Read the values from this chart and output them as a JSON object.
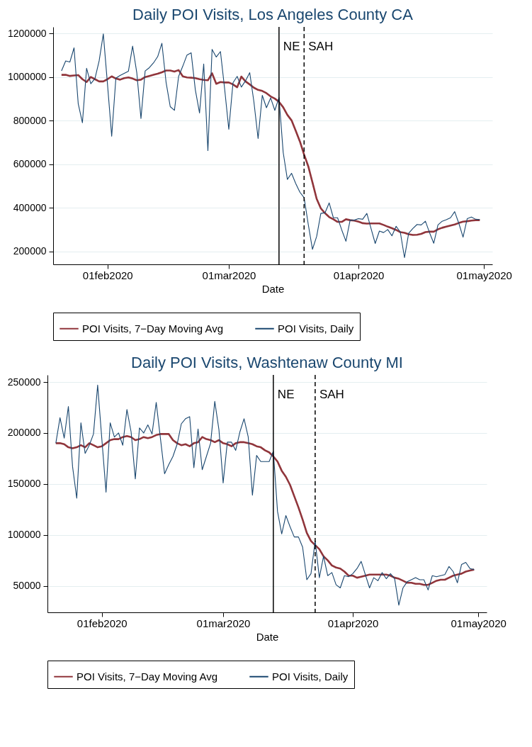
{
  "chart_data": [
    {
      "type": "line",
      "title": "Daily POI Visits, Los Angeles County CA",
      "xlabel": "Date",
      "x": [
        "2020-01-21",
        "2020-01-22",
        "2020-01-23",
        "2020-01-24",
        "2020-01-25",
        "2020-01-26",
        "2020-01-27",
        "2020-01-28",
        "2020-01-29",
        "2020-01-30",
        "2020-01-31",
        "2020-02-01",
        "2020-02-02",
        "2020-02-03",
        "2020-02-04",
        "2020-02-05",
        "2020-02-06",
        "2020-02-07",
        "2020-02-08",
        "2020-02-09",
        "2020-02-10",
        "2020-02-11",
        "2020-02-12",
        "2020-02-13",
        "2020-02-14",
        "2020-02-15",
        "2020-02-16",
        "2020-02-17",
        "2020-02-18",
        "2020-02-19",
        "2020-02-20",
        "2020-02-21",
        "2020-02-22",
        "2020-02-23",
        "2020-02-24",
        "2020-02-25",
        "2020-02-26",
        "2020-02-27",
        "2020-02-28",
        "2020-02-29",
        "2020-03-01",
        "2020-03-02",
        "2020-03-03",
        "2020-03-04",
        "2020-03-05",
        "2020-03-06",
        "2020-03-07",
        "2020-03-08",
        "2020-03-09",
        "2020-03-10",
        "2020-03-11",
        "2020-03-12",
        "2020-03-13",
        "2020-03-14",
        "2020-03-15",
        "2020-03-16",
        "2020-03-17",
        "2020-03-18",
        "2020-03-19",
        "2020-03-20",
        "2020-03-21",
        "2020-03-22",
        "2020-03-23",
        "2020-03-24",
        "2020-03-25",
        "2020-03-26",
        "2020-03-27",
        "2020-03-28",
        "2020-03-29",
        "2020-03-30",
        "2020-03-31",
        "2020-04-01",
        "2020-04-02",
        "2020-04-03",
        "2020-04-04",
        "2020-04-05",
        "2020-04-06",
        "2020-04-07",
        "2020-04-08",
        "2020-04-09",
        "2020-04-10",
        "2020-04-11",
        "2020-04-12",
        "2020-04-13",
        "2020-04-14",
        "2020-04-15",
        "2020-04-16",
        "2020-04-17",
        "2020-04-18",
        "2020-04-19",
        "2020-04-20",
        "2020-04-21",
        "2020-04-22",
        "2020-04-23",
        "2020-04-24",
        "2020-04-25",
        "2020-04-26",
        "2020-04-27",
        "2020-04-28",
        "2020-04-29",
        "2020-04-30"
      ],
      "series": [
        {
          "name": "POI Visits, 7−Day Moving Avg",
          "color": "#90353b",
          "values": [
            1010000,
            1010000,
            1005000,
            1007000,
            1009000,
            990000,
            977000,
            1000000,
            990000,
            980000,
            980000,
            990000,
            1003000,
            993000,
            988000,
            995000,
            998000,
            993000,
            985000,
            988000,
            1000000,
            1005000,
            1010000,
            1015000,
            1022000,
            1030000,
            1030000,
            1025000,
            1032000,
            1003000,
            998000,
            997000,
            995000,
            990000,
            987000,
            985000,
            1017000,
            969000,
            977000,
            975000,
            975000,
            966000,
            953000,
            1002000,
            980000,
            966000,
            951000,
            941000,
            936000,
            926000,
            911000,
            901000,
            886000,
            861000,
            826000,
            801000,
            753000,
            704000,
            644000,
            590000,
            516000,
            441000,
            397000,
            375000,
            357000,
            347000,
            335000,
            335000,
            347000,
            343000,
            341000,
            336000,
            329000,
            327000,
            328000,
            328000,
            328000,
            321000,
            313000,
            306000,
            298000,
            288000,
            285000,
            278000,
            275000,
            276000,
            280000,
            288000,
            290000,
            290000,
            301000,
            308000,
            313000,
            318000,
            323000,
            330000,
            336000,
            338000,
            341000,
            343000,
            343000
          ]
        },
        {
          "name": "POI Visits, Daily",
          "color": "#1a476f",
          "values": [
            1028000,
            1074000,
            1069000,
            1134000,
            877000,
            790000,
            1040000,
            969000,
            993000,
            1074000,
            1198000,
            966000,
            728000,
            995000,
            1007000,
            1017000,
            1027000,
            1142000,
            1020000,
            810000,
            1028000,
            1043000,
            1065000,
            1094000,
            1155000,
            976000,
            864000,
            847000,
            1003000,
            1050000,
            1101000,
            1111000,
            941000,
            835000,
            1060000,
            662000,
            1127000,
            1092000,
            1117000,
            946000,
            760000,
            974000,
            1003000,
            954000,
            983000,
            1020000,
            886000,
            718000,
            916000,
            859000,
            904000,
            847000,
            906000,
            654000,
            530000,
            558000,
            511000,
            471000,
            446000,
            323000,
            209000,
            268000,
            374000,
            377000,
            422000,
            354000,
            354000,
            298000,
            246000,
            343000,
            343000,
            350000,
            347000,
            374000,
            305000,
            236000,
            293000,
            286000,
            300000,
            271000,
            315000,
            288000,
            171000,
            283000,
            305000,
            323000,
            321000,
            338000,
            285000,
            237000,
            321000,
            338000,
            345000,
            354000,
            382000,
            328000,
            265000,
            350000,
            357000,
            347000,
            346000
          ]
        }
      ],
      "xlim": [
        "2020-01-19",
        "2020-05-03"
      ],
      "xticks": [
        {
          "value": "2020-02-01",
          "label": "01feb2020"
        },
        {
          "value": "2020-03-01",
          "label": "01mar2020"
        },
        {
          "value": "2020-04-01",
          "label": "01apr2020"
        },
        {
          "value": "2020-05-01",
          "label": "01may2020"
        }
      ],
      "ylim": [
        140000,
        1230000
      ],
      "yticks": [
        200000,
        400000,
        600000,
        800000,
        1000000,
        1200000
      ],
      "grid": "y",
      "legend": "bottom",
      "ref_lines": [
        {
          "axis": "x",
          "value": "2020-03-13",
          "label": "NE",
          "line_style": "solid"
        },
        {
          "axis": "x",
          "value": "2020-03-19",
          "label": "SAH",
          "line_style": "dashed"
        }
      ]
    },
    {
      "type": "line",
      "title": "Daily POI Visits, Washtenaw County MI",
      "xlabel": "Date",
      "x": [
        "2020-01-21",
        "2020-01-22",
        "2020-01-23",
        "2020-01-24",
        "2020-01-25",
        "2020-01-26",
        "2020-01-27",
        "2020-01-28",
        "2020-01-29",
        "2020-01-30",
        "2020-01-31",
        "2020-02-01",
        "2020-02-02",
        "2020-02-03",
        "2020-02-04",
        "2020-02-05",
        "2020-02-06",
        "2020-02-07",
        "2020-02-08",
        "2020-02-09",
        "2020-02-10",
        "2020-02-11",
        "2020-02-12",
        "2020-02-13",
        "2020-02-14",
        "2020-02-15",
        "2020-02-16",
        "2020-02-17",
        "2020-02-18",
        "2020-02-19",
        "2020-02-20",
        "2020-02-21",
        "2020-02-22",
        "2020-02-23",
        "2020-02-24",
        "2020-02-25",
        "2020-02-26",
        "2020-02-27",
        "2020-02-28",
        "2020-02-29",
        "2020-03-01",
        "2020-03-02",
        "2020-03-03",
        "2020-03-04",
        "2020-03-05",
        "2020-03-06",
        "2020-03-07",
        "2020-03-08",
        "2020-03-09",
        "2020-03-10",
        "2020-03-11",
        "2020-03-12",
        "2020-03-13",
        "2020-03-14",
        "2020-03-15",
        "2020-03-16",
        "2020-03-17",
        "2020-03-18",
        "2020-03-19",
        "2020-03-20",
        "2020-03-21",
        "2020-03-22",
        "2020-03-23",
        "2020-03-24",
        "2020-03-25",
        "2020-03-26",
        "2020-03-27",
        "2020-03-28",
        "2020-03-29",
        "2020-03-30",
        "2020-03-31",
        "2020-04-01",
        "2020-04-02",
        "2020-04-03",
        "2020-04-04",
        "2020-04-05",
        "2020-04-06",
        "2020-04-07",
        "2020-04-08",
        "2020-04-09",
        "2020-04-10",
        "2020-04-11",
        "2020-04-12",
        "2020-04-13",
        "2020-04-14",
        "2020-04-15",
        "2020-04-16",
        "2020-04-17",
        "2020-04-18",
        "2020-04-19",
        "2020-04-20",
        "2020-04-21",
        "2020-04-22",
        "2020-04-23",
        "2020-04-24",
        "2020-04-25",
        "2020-04-26",
        "2020-04-27",
        "2020-04-28",
        "2020-04-29",
        "2020-04-30"
      ],
      "series": [
        {
          "name": "POI Visits, 7−Day Moving Avg",
          "color": "#90353b",
          "values": [
            190000,
            190000,
            189000,
            186000,
            185000,
            186000,
            188000,
            186000,
            190000,
            188000,
            186000,
            187000,
            190000,
            193000,
            194000,
            194000,
            196000,
            197000,
            196000,
            193000,
            194000,
            196000,
            195000,
            196000,
            198000,
            199000,
            199000,
            199000,
            193000,
            190000,
            188000,
            189000,
            187000,
            190000,
            191000,
            196000,
            194000,
            193000,
            191000,
            193000,
            190000,
            189000,
            187000,
            190000,
            191000,
            191000,
            190000,
            189000,
            187000,
            186000,
            183000,
            181000,
            177000,
            172000,
            163000,
            157000,
            149000,
            138000,
            127000,
            115000,
            102000,
            94000,
            90000,
            86000,
            79000,
            75000,
            70000,
            68000,
            67000,
            64000,
            60000,
            60000,
            58000,
            59000,
            60000,
            61000,
            61000,
            61000,
            61000,
            61000,
            60000,
            58000,
            57000,
            55000,
            53000,
            53000,
            52000,
            52000,
            51000,
            51000,
            53000,
            55000,
            56000,
            56000,
            58000,
            60000,
            61000,
            62000,
            64000,
            65000,
            66000
          ]
        },
        {
          "name": "POI Visits, Daily",
          "color": "#1a476f",
          "values": [
            190000,
            215000,
            195000,
            226000,
            167000,
            136000,
            210000,
            180000,
            188000,
            199000,
            247000,
            194000,
            142000,
            210000,
            196000,
            200000,
            188000,
            223000,
            201000,
            155000,
            205000,
            200000,
            208000,
            199000,
            230000,
            195000,
            160000,
            169000,
            177000,
            189000,
            209000,
            214000,
            216000,
            166000,
            204000,
            164000,
            177000,
            190000,
            231000,
            203000,
            151000,
            191000,
            191000,
            183000,
            201000,
            214000,
            196000,
            139000,
            178000,
            172000,
            172000,
            172000,
            182000,
            123000,
            101000,
            119000,
            108000,
            98000,
            98000,
            88000,
            56000,
            62000,
            94000,
            58000,
            79000,
            60000,
            63000,
            51000,
            48000,
            60000,
            59000,
            62000,
            67000,
            74000,
            61000,
            48000,
            58000,
            55000,
            63000,
            57000,
            62000,
            57000,
            31000,
            48000,
            54000,
            56000,
            58000,
            56000,
            56000,
            46000,
            60000,
            59000,
            60000,
            61000,
            69000,
            64000,
            53000,
            71000,
            73000,
            67000,
            66000
          ]
        }
      ],
      "xlim": [
        "2020-01-19",
        "2020-05-03"
      ],
      "xticks": [
        {
          "value": "2020-02-01",
          "label": "01feb2020"
        },
        {
          "value": "2020-03-01",
          "label": "01mar2020"
        },
        {
          "value": "2020-04-01",
          "label": "01apr2020"
        },
        {
          "value": "2020-05-01",
          "label": "01may2020"
        }
      ],
      "ylim": [
        24000,
        257000
      ],
      "yticks": [
        50000,
        100000,
        150000,
        200000,
        250000
      ],
      "grid": "y",
      "legend": "bottom",
      "ref_lines": [
        {
          "axis": "x",
          "value": "2020-03-13",
          "label": "NE",
          "line_style": "solid"
        },
        {
          "axis": "x",
          "value": "2020-03-23",
          "label": "SAH",
          "line_style": "dashed"
        }
      ]
    }
  ]
}
